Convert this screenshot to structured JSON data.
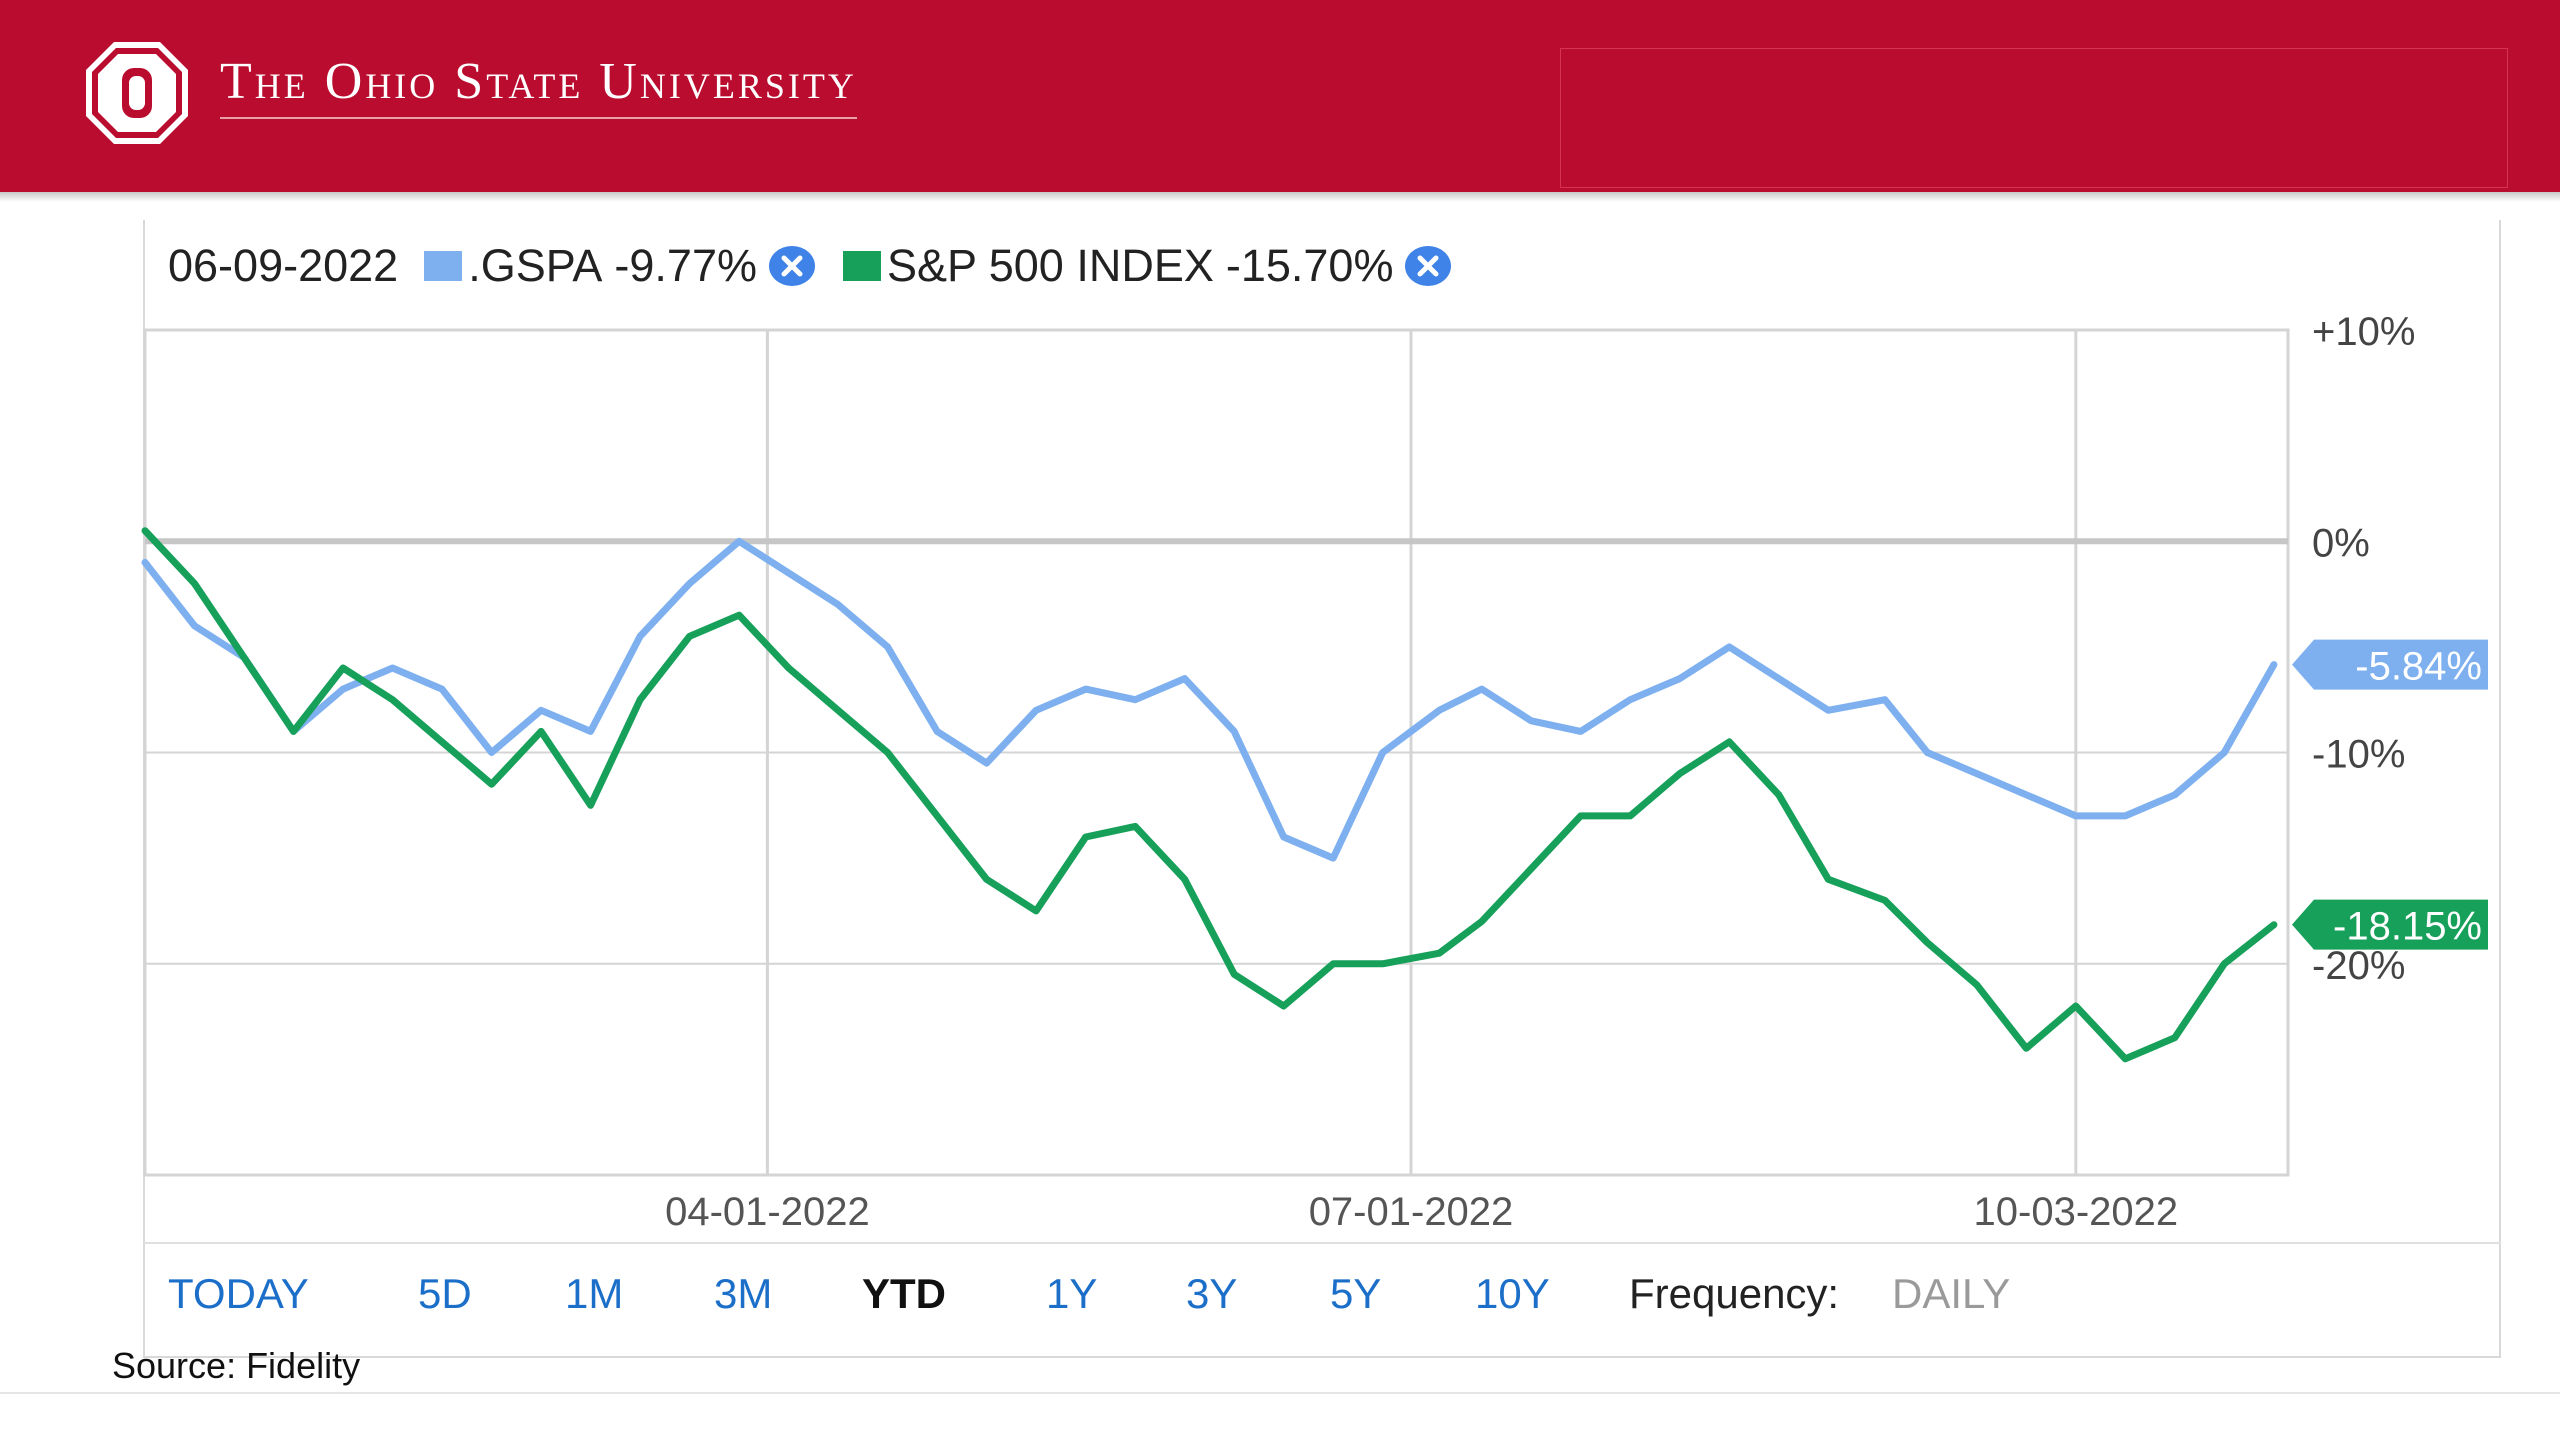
{
  "header": {
    "university": "The Ohio State University"
  },
  "legend": {
    "date": "06-09-2022",
    "items": [
      {
        "label": ".GSPA",
        "value": "-9.77%",
        "color": "#7eb0f0"
      },
      {
        "label": "S&P 500 INDEX",
        "value": "-15.70%",
        "color": "#17a05a"
      }
    ]
  },
  "range_options": {
    "items": [
      "TODAY",
      "5D",
      "1M",
      "3M",
      "YTD",
      "1Y",
      "3Y",
      "5Y",
      "10Y"
    ],
    "selected": "YTD",
    "frequency_label": "Frequency:",
    "frequency_value": "DAILY"
  },
  "source": "Source: Fidelity",
  "chart_data": {
    "type": "line",
    "x_tick_labels": [
      "04-01-2022",
      "07-01-2022",
      "10-03-2022"
    ],
    "y_tick_labels": [
      "+10%",
      "0%",
      "-10%",
      "-20%"
    ],
    "ylim": [
      -30,
      10
    ],
    "xlim": [
      "2022-01-03",
      "2022-11-02"
    ],
    "grid": true,
    "legend_position": "top-left",
    "end_labels": [
      {
        "series": ".GSPA",
        "text": "-5.84%",
        "color": "#7eb0f0"
      },
      {
        "series": "S&P 500 INDEX",
        "text": "-18.15%",
        "color": "#17a05a"
      }
    ],
    "series": [
      {
        "name": ".GSPA",
        "color": "#7eb0f0",
        "x": [
          "2022-01-03",
          "2022-01-10",
          "2022-01-17",
          "2022-01-24",
          "2022-01-31",
          "2022-02-07",
          "2022-02-14",
          "2022-02-21",
          "2022-02-28",
          "2022-03-07",
          "2022-03-14",
          "2022-03-21",
          "2022-03-28",
          "2022-04-04",
          "2022-04-11",
          "2022-04-18",
          "2022-04-25",
          "2022-05-02",
          "2022-05-09",
          "2022-05-16",
          "2022-05-23",
          "2022-05-30",
          "2022-06-06",
          "2022-06-13",
          "2022-06-20",
          "2022-06-27",
          "2022-07-05",
          "2022-07-11",
          "2022-07-18",
          "2022-07-25",
          "2022-08-01",
          "2022-08-08",
          "2022-08-15",
          "2022-08-22",
          "2022-08-29",
          "2022-09-06",
          "2022-09-12",
          "2022-09-19",
          "2022-09-26",
          "2022-10-03",
          "2022-10-10",
          "2022-10-17",
          "2022-10-24",
          "2022-10-31"
        ],
        "y": [
          -1.0,
          -4.0,
          -5.5,
          -9.0,
          -7.0,
          -6.0,
          -7.0,
          -10.0,
          -8.0,
          -9.0,
          -4.5,
          -2.0,
          0.0,
          -1.5,
          -3.0,
          -5.0,
          -9.0,
          -10.5,
          -8.0,
          -7.0,
          -7.5,
          -6.5,
          -9.0,
          -14.0,
          -15.0,
          -10.0,
          -8.0,
          -7.0,
          -8.5,
          -9.0,
          -7.5,
          -6.5,
          -5.0,
          -6.5,
          -8.0,
          -7.5,
          -10.0,
          -11.0,
          -12.0,
          -13.0,
          -13.0,
          -12.0,
          -10.0,
          -5.84
        ]
      },
      {
        "name": "S&P 500 INDEX",
        "color": "#17a05a",
        "x": [
          "2022-01-03",
          "2022-01-10",
          "2022-01-17",
          "2022-01-24",
          "2022-01-31",
          "2022-02-07",
          "2022-02-14",
          "2022-02-21",
          "2022-02-28",
          "2022-03-07",
          "2022-03-14",
          "2022-03-21",
          "2022-03-28",
          "2022-04-04",
          "2022-04-11",
          "2022-04-18",
          "2022-04-25",
          "2022-05-02",
          "2022-05-09",
          "2022-05-16",
          "2022-05-23",
          "2022-05-30",
          "2022-06-06",
          "2022-06-13",
          "2022-06-20",
          "2022-06-27",
          "2022-07-05",
          "2022-07-11",
          "2022-07-18",
          "2022-07-25",
          "2022-08-01",
          "2022-08-08",
          "2022-08-15",
          "2022-08-22",
          "2022-08-29",
          "2022-09-06",
          "2022-09-12",
          "2022-09-19",
          "2022-09-26",
          "2022-10-03",
          "2022-10-10",
          "2022-10-17",
          "2022-10-24",
          "2022-10-31"
        ],
        "y": [
          0.5,
          -2.0,
          -5.5,
          -9.0,
          -6.0,
          -7.5,
          -9.5,
          -11.5,
          -9.0,
          -12.5,
          -7.5,
          -4.5,
          -3.5,
          -6.0,
          -8.0,
          -10.0,
          -13.0,
          -16.0,
          -17.5,
          -14.0,
          -13.5,
          -16.0,
          -20.5,
          -22.0,
          -20.0,
          -20.0,
          -19.5,
          -18.0,
          -15.5,
          -13.0,
          -13.0,
          -11.0,
          -9.5,
          -12.0,
          -16.0,
          -17.0,
          -19.0,
          -21.0,
          -24.0,
          -22.0,
          -24.5,
          -23.5,
          -20.0,
          -18.15
        ]
      }
    ]
  }
}
